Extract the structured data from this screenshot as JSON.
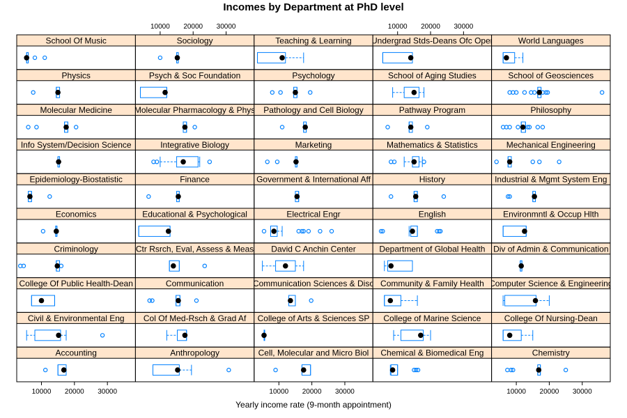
{
  "chart_data": {
    "type": "box",
    "title": "Incomes by Department at PhD level",
    "xlabel": "Yearly income rate (9-month appointment)",
    "ylabel": "",
    "xlim": [
      2500,
      38500
    ],
    "x_ticks": [
      10000,
      20000,
      30000
    ],
    "x_tick_labels": [
      "10000",
      "20000",
      "30000"
    ],
    "layout": {
      "columns": 5,
      "rows": 10
    },
    "colors": {
      "strip": "#ffe5cc",
      "box": "#0080ff",
      "median": "#000000",
      "frame": "#000000"
    },
    "panels": [
      {
        "label": "Accounting",
        "q1": 15000,
        "median": 16800,
        "q3": 17500,
        "whisker_low": 15000,
        "whisker_high": 17500,
        "outliers": [
          11200
        ]
      },
      {
        "label": "Anthropology",
        "q1": 7800,
        "median": 15300,
        "q3": 15800,
        "whisker_low": 7800,
        "whisker_high": 19500,
        "outliers": [
          30800
        ]
      },
      {
        "label": "Cell, Molecular and Micro Biol",
        "q1": 17000,
        "median": 17500,
        "q3": 19600,
        "whisker_low": 17000,
        "whisker_high": 19600,
        "outliers": [
          9000
        ]
      },
      {
        "label": "Chemical & Biomedical Eng",
        "q1": 8000,
        "median": 8500,
        "q3": 10000,
        "whisker_low": 7800,
        "whisker_high": 10000,
        "outliers": [
          15000,
          15600,
          16200
        ]
      },
      {
        "label": "Chemistry",
        "q1": 16500,
        "median": 16800,
        "q3": 17300,
        "whisker_low": 16500,
        "whisker_high": 17300,
        "outliers": [
          7300,
          8400,
          9000,
          25000
        ]
      },
      {
        "label": "Civil & Environmental Eng",
        "q1": 8000,
        "median": 15200,
        "q3": 15800,
        "whisker_low": 5500,
        "whisker_high": 17500,
        "outliers": [
          28500
        ]
      },
      {
        "label": "Col Of Med-Rsch & Grad Af",
        "q1": 15200,
        "median": 17500,
        "q3": 18000,
        "whisker_low": 12000,
        "whisker_high": 18000,
        "outliers": []
      },
      {
        "label": "College of Arts & Sciences SP",
        "q1": 5500,
        "median": 5500,
        "q3": 5500,
        "whisker_low": 5500,
        "whisker_high": 5500,
        "outliers": []
      },
      {
        "label": "College of Marine Science",
        "q1": 11000,
        "median": 17000,
        "q3": 17800,
        "whisker_low": 8800,
        "whisker_high": 20000,
        "outliers": []
      },
      {
        "label": "College Of Nursing-Dean",
        "q1": 6000,
        "median": 8000,
        "q3": 11500,
        "whisker_low": 6000,
        "whisker_high": 15000,
        "outliers": []
      },
      {
        "label": "College Of Public Health-Dean",
        "q1": 7000,
        "median": 10000,
        "q3": 14000,
        "whisker_low": 7000,
        "whisker_high": 14000,
        "outliers": []
      },
      {
        "label": "Communication",
        "q1": 14800,
        "median": 15500,
        "q3": 16000,
        "whisker_low": 14800,
        "whisker_high": 16000,
        "outliers": [
          6800,
          7600,
          21000
        ]
      },
      {
        "label": "Communication Sciences & Diso",
        "q1": 13000,
        "median": 13500,
        "q3": 15000,
        "whisker_low": 13000,
        "whisker_high": 15000,
        "outliers": [
          19800
        ]
      },
      {
        "label": "Community & Family Health",
        "q1": 6000,
        "median": 7800,
        "q3": 11000,
        "whisker_low": 6000,
        "whisker_high": 16000,
        "outliers": []
      },
      {
        "label": "Computer Science & Engineering",
        "q1": 6500,
        "median": 15800,
        "q3": 16000,
        "whisker_low": 6000,
        "whisker_high": 20000,
        "outliers": []
      },
      {
        "label": "Criminology",
        "q1": 14500,
        "median": 14800,
        "q3": 15500,
        "whisker_low": 14500,
        "whisker_high": 15500,
        "outliers": [
          3600,
          4600,
          16000
        ]
      },
      {
        "label": "Ctr Rsrch, Eval, Assess & Meas",
        "q1": 12800,
        "median": 14000,
        "q3": 15800,
        "whisker_low": 12800,
        "whisker_high": 15800,
        "outliers": [
          23500
        ]
      },
      {
        "label": "David C Anchin Center",
        "q1": 9000,
        "median": 12000,
        "q3": 15000,
        "whisker_low": 5000,
        "whisker_high": 17500,
        "outliers": []
      },
      {
        "label": "Department of Global Health",
        "q1": 7000,
        "median": 8000,
        "q3": 14500,
        "whisker_low": 6000,
        "whisker_high": 14500,
        "outliers": []
      },
      {
        "label": "Div of Admin & Communication",
        "q1": 11200,
        "median": 11500,
        "q3": 11700,
        "whisker_low": 11200,
        "whisker_high": 11700,
        "outliers": []
      },
      {
        "label": "Economics",
        "q1": 14300,
        "median": 14500,
        "q3": 14700,
        "whisker_low": 14300,
        "whisker_high": 14700,
        "outliers": [
          10500
        ]
      },
      {
        "label": "Educational & Psychological",
        "q1": 3500,
        "median": 12500,
        "q3": 13000,
        "whisker_low": 3500,
        "whisker_high": 13000,
        "outliers": []
      },
      {
        "label": "Electrical Engr",
        "q1": 7500,
        "median": 8500,
        "q3": 9500,
        "whisker_low": 7500,
        "whisker_high": 11000,
        "outliers": [
          5500,
          16000,
          17000,
          17500,
          19000,
          22500,
          26000
        ]
      },
      {
        "label": "English",
        "q1": 14000,
        "median": 14500,
        "q3": 16000,
        "whisker_low": 13500,
        "whisker_high": 16000,
        "outliers": [
          5000,
          5500,
          22000,
          22600,
          23000
        ]
      },
      {
        "label": "Environmntl & Occup Hlth",
        "q1": 6000,
        "median": 12500,
        "q3": 13000,
        "whisker_low": 6000,
        "whisker_high": 13000,
        "outliers": []
      },
      {
        "label": "Epidemiology-Biostatistic",
        "q1": 6000,
        "median": 6500,
        "q3": 7000,
        "whisker_low": 6000,
        "whisker_high": 7000,
        "outliers": [
          12500
        ]
      },
      {
        "label": "Finance",
        "q1": 15000,
        "median": 15500,
        "q3": 15800,
        "whisker_low": 15000,
        "whisker_high": 15800,
        "outliers": [
          6500
        ]
      },
      {
        "label": "Government & International Aff",
        "q1": 15000,
        "median": 15500,
        "q3": 16000,
        "whisker_low": 15000,
        "whisker_high": 16000,
        "outliers": []
      },
      {
        "label": "History",
        "q1": 15000,
        "median": 15500,
        "q3": 16000,
        "whisker_low": 15000,
        "whisker_high": 16000,
        "outliers": [
          8000,
          24000
        ]
      },
      {
        "label": "Industrial & Mgmt System Eng",
        "q1": 15000,
        "median": 15500,
        "q3": 15800,
        "whisker_low": 15000,
        "whisker_high": 15800,
        "outliers": [
          7500,
          8000
        ]
      },
      {
        "label": "Info System/Decision Science",
        "q1": 15000,
        "median": 15200,
        "q3": 15500,
        "whisker_low": 15000,
        "whisker_high": 15500,
        "outliers": []
      },
      {
        "label": "Integrative Biology",
        "q1": 15000,
        "median": 17000,
        "q3": 21500,
        "whisker_low": 10000,
        "whisker_high": 22000,
        "outliers": [
          8000,
          9000,
          25000
        ]
      },
      {
        "label": "Marketing",
        "q1": 15000,
        "median": 15200,
        "q3": 15500,
        "whisker_low": 15000,
        "whisker_high": 15500,
        "outliers": [
          6500,
          9500
        ]
      },
      {
        "label": "Mathematics & Statistics",
        "q1": 14500,
        "median": 15000,
        "q3": 16500,
        "whisker_low": 12000,
        "whisker_high": 17500,
        "outliers": [
          8000,
          9000,
          18000
        ]
      },
      {
        "label": "Mechanical Engineering",
        "q1": 7500,
        "median": 8000,
        "q3": 8500,
        "whisker_low": 7500,
        "whisker_high": 8500,
        "outliers": [
          4000,
          15000,
          17000,
          23000
        ]
      },
      {
        "label": "Molecular Medicine",
        "q1": 17000,
        "median": 17500,
        "q3": 18000,
        "whisker_low": 17000,
        "whisker_high": 18000,
        "outliers": [
          6000,
          8500,
          20500
        ]
      },
      {
        "label": "Molecular Pharmacology & Phys",
        "q1": 17000,
        "median": 17500,
        "q3": 18000,
        "whisker_low": 17000,
        "whisker_high": 18000,
        "outliers": [
          20500
        ]
      },
      {
        "label": "Pathology and Cell Biology",
        "q1": 17500,
        "median": 18000,
        "q3": 18300,
        "whisker_low": 17500,
        "whisker_high": 18300,
        "outliers": [
          11000
        ]
      },
      {
        "label": "Pathway Program",
        "q1": 13500,
        "median": 14000,
        "q3": 14500,
        "whisker_low": 13500,
        "whisker_high": 14500,
        "outliers": [
          7000,
          19000
        ]
      },
      {
        "label": "Philosophy",
        "q1": 11500,
        "median": 12000,
        "q3": 12800,
        "whisker_low": 11500,
        "whisker_high": 12800,
        "outliers": [
          6000,
          7000,
          8000,
          10500,
          13500,
          14000,
          16500,
          18000
        ]
      },
      {
        "label": "Physics",
        "q1": 14500,
        "median": 15000,
        "q3": 15500,
        "whisker_low": 14500,
        "whisker_high": 15500,
        "outliers": [
          7500
        ]
      },
      {
        "label": "Psych & Soc Foundation",
        "q1": 4000,
        "median": 11500,
        "q3": 12000,
        "whisker_low": 4000,
        "whisker_high": 12000,
        "outliers": []
      },
      {
        "label": "Psychology",
        "q1": 14500,
        "median": 15000,
        "q3": 15500,
        "whisker_low": 14500,
        "whisker_high": 15500,
        "outliers": [
          8000,
          10500,
          19500
        ]
      },
      {
        "label": "School of Aging Studies",
        "q1": 12000,
        "median": 15000,
        "q3": 16500,
        "whisker_low": 8500,
        "whisker_high": 18000,
        "outliers": []
      },
      {
        "label": "School of Geosciences",
        "q1": 16500,
        "median": 17000,
        "q3": 17500,
        "whisker_low": 16500,
        "whisker_high": 17500,
        "outliers": [
          8000,
          9000,
          10000,
          12500,
          14500,
          15500,
          18000,
          19000,
          19500,
          36000
        ]
      },
      {
        "label": "School Of Music",
        "q1": 5500,
        "median": 5500,
        "q3": 6000,
        "whisker_low": 5500,
        "whisker_high": 6000,
        "outliers": [
          8000,
          11000
        ]
      },
      {
        "label": "Sociology",
        "q1": 15000,
        "median": 15200,
        "q3": 15500,
        "whisker_low": 15000,
        "whisker_high": 15500,
        "outliers": [
          10000
        ]
      },
      {
        "label": "Teaching & Learning",
        "q1": 3500,
        "median": 11000,
        "q3": 12000,
        "whisker_low": 3500,
        "whisker_high": 17500,
        "outliers": []
      },
      {
        "label": "Undergrad Stds-Deans Ofc Oper",
        "q1": 5500,
        "median": 14000,
        "q3": 14500,
        "whisker_low": 5500,
        "whisker_high": 14500,
        "outliers": []
      },
      {
        "label": "World Languages",
        "q1": 6000,
        "median": 7000,
        "q3": 9500,
        "whisker_low": 6000,
        "whisker_high": 12000,
        "outliers": []
      }
    ]
  }
}
